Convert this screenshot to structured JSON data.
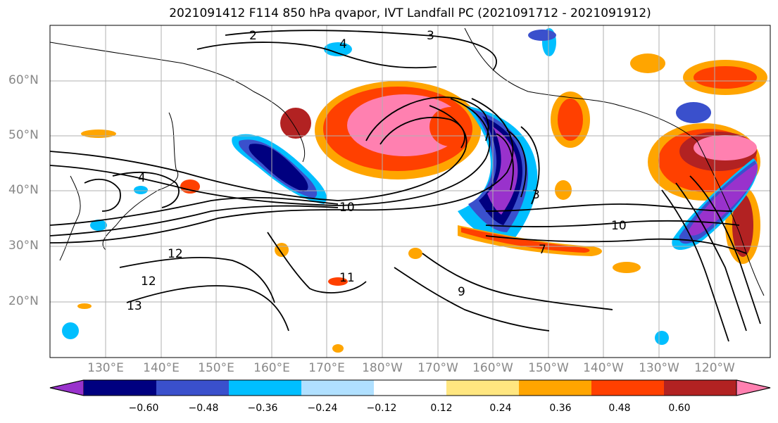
{
  "title": "2021091412 F114 850 hPa qvapor, IVT Landfall PC (2021091712 - 2021091912)",
  "lat_ticks": [
    "60°N",
    "50°N",
    "40°N",
    "30°N",
    "20°N"
  ],
  "lon_ticks": [
    "130°E",
    "140°E",
    "150°E",
    "160°E",
    "170°E",
    "180°W",
    "170°W",
    "160°W",
    "150°W",
    "140°W",
    "130°W",
    "120°W"
  ],
  "contour_labels": [
    "2",
    "3",
    "4",
    "10",
    "3",
    "12",
    "11",
    "12",
    "13",
    "10",
    "9",
    "7",
    "4"
  ],
  "colorbar": {
    "colors": [
      "#9932CC",
      "#000080",
      "#3A50CC",
      "#00BFFF",
      "#B0E0FF",
      "#FFFFFF",
      "#FFE680",
      "#FFA500",
      "#FF4000",
      "#B22222",
      "#FF80B0"
    ],
    "tick_labels": [
      "−0.60",
      "−0.48",
      "−0.36",
      "−0.24",
      "−0.12",
      "0.12",
      "0.24",
      "0.36",
      "0.48",
      "0.60"
    ]
  },
  "colors": {
    "neg_strong": "#9932CC",
    "neg_dark": "#000080",
    "neg_mid": "#3A50CC",
    "neg_light": "#00BFFF",
    "pos_light": "#FFA500",
    "pos_mid": "#FF4000",
    "pos_strong": "#B22222",
    "pos_max": "#FF80B0"
  }
}
